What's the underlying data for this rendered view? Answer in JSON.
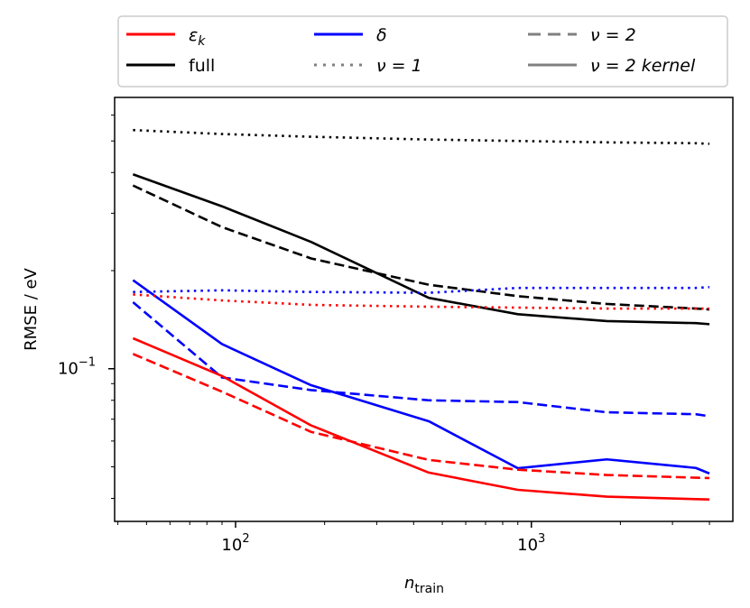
{
  "chart_data": {
    "type": "line",
    "xlabel": {
      "base": "n",
      "sub": "train"
    },
    "ylabel": "RMSE / eV",
    "xscale": "log",
    "yscale": "log",
    "xlim": [
      39,
      4800
    ],
    "ylim": [
      0.034,
      0.68
    ],
    "x": [
      45,
      90,
      180,
      450,
      900,
      1800,
      3600,
      4000
    ],
    "x_tick_labels": [
      {
        "value": 100,
        "base": "10",
        "exp": "2"
      },
      {
        "value": 1000,
        "base": "10",
        "exp": "3"
      }
    ],
    "y_tick_labels": [
      {
        "value": 0.1,
        "base": "10",
        "exp": "−1"
      }
    ],
    "grid": false,
    "legend": {
      "placement": "above plot",
      "entries": [
        {
          "label": "ε",
          "sub": "k",
          "color": "#ff0000",
          "style": "solid"
        },
        {
          "label": "δ",
          "color": "#0000ff",
          "style": "solid"
        },
        {
          "label": "ν = 2",
          "color": "#808080",
          "style": "dashed"
        },
        {
          "label": "full",
          "color": "#000000",
          "style": "solid"
        },
        {
          "label": "ν = 1",
          "color": "#808080",
          "style": "dotted"
        },
        {
          "label": "ν = 2 kernel",
          "color": "#808080",
          "style": "solid"
        }
      ]
    },
    "series": [
      {
        "color": "#000000",
        "style": "dotted",
        "values": [
          0.54,
          0.525,
          0.515,
          0.505,
          0.5,
          0.495,
          0.492,
          0.49
        ]
      },
      {
        "color": "#000000",
        "style": "solid",
        "values": [
          0.395,
          0.315,
          0.245,
          0.165,
          0.147,
          0.14,
          0.138,
          0.137
        ]
      },
      {
        "color": "#000000",
        "style": "dashed",
        "values": [
          0.365,
          0.272,
          0.218,
          0.181,
          0.167,
          0.158,
          0.153,
          0.152
        ]
      },
      {
        "color": "#0000ff",
        "style": "dotted",
        "values": [
          0.172,
          0.174,
          0.172,
          0.171,
          0.177,
          0.177,
          0.177,
          0.178
        ]
      },
      {
        "color": "#0000ff",
        "style": "solid",
        "values": [
          0.187,
          0.119,
          0.089,
          0.069,
          0.0495,
          0.0527,
          0.0496,
          0.0477
        ]
      },
      {
        "color": "#0000ff",
        "style": "dashed",
        "values": [
          0.16,
          0.094,
          0.086,
          0.08,
          0.079,
          0.0735,
          0.0725,
          0.0715
        ]
      },
      {
        "color": "#ff0000",
        "style": "dotted",
        "values": [
          0.169,
          0.162,
          0.157,
          0.155,
          0.154,
          0.153,
          0.153,
          0.153
        ]
      },
      {
        "color": "#ff0000",
        "style": "solid",
        "values": [
          0.124,
          0.095,
          0.067,
          0.048,
          0.0425,
          0.0405,
          0.0398,
          0.0397
        ]
      },
      {
        "color": "#ff0000",
        "style": "dashed",
        "values": [
          0.111,
          0.085,
          0.064,
          0.0525,
          0.049,
          0.0472,
          0.0463,
          0.0462
        ]
      }
    ]
  }
}
